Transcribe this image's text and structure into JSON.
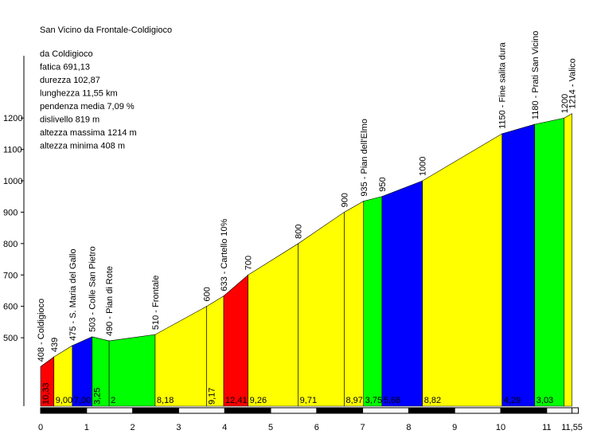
{
  "chart_data": {
    "type": "profile",
    "title": "San Vicino da Frontale-Coldigioco",
    "info": [
      "da Coldigioco",
      "fatica 691,13",
      "durezza 102,87",
      "lunghezza 11,55 km",
      "pendenza media 7,09 %",
      "dislivello 819 m",
      "altezza massima 1214 m",
      "altezza minima 408 m"
    ],
    "x": [
      0,
      0.29,
      0.69,
      1.12,
      1.49,
      2.49,
      3.61,
      3.98,
      4.51,
      5.6,
      6.6,
      7.02,
      7.42,
      8.3,
      10.03,
      10.74,
      11.38,
      11.55
    ],
    "values": [
      408,
      439,
      475,
      503,
      490,
      510,
      600,
      633,
      700,
      800,
      900,
      935,
      950,
      1000,
      1150,
      1180,
      1200,
      1214
    ],
    "point_labels": [
      "408 - Coldigioco",
      "439",
      "475 - S. Maria del Gallo",
      "503 - Colle San Pietro",
      "490 - Pian di Rote",
      "510 - Frontale",
      "600",
      "633 - Cartello 10%",
      "700",
      "800",
      "900",
      "935 - Pian dell'Elmo",
      "950",
      "1000",
      "1150 - Fine salita dura",
      "1180 - Prati San Vicino",
      "1200",
      "1214 - Valico"
    ],
    "gradient_labels": [
      "10,33",
      "9,00",
      "7,00",
      "3,25",
      "2",
      "8,18",
      "9,17",
      "12,41",
      "9,26",
      "9,71",
      "8,97",
      "3,75",
      "5,68",
      "8,82",
      "4,29",
      "3,03",
      null
    ],
    "segment_colors": [
      "#ff0000",
      "#ffff00",
      "#0000ff",
      "#00ff00",
      "#00ff00",
      "#ffff00",
      "#ffff00",
      "#ff0000",
      "#ffff00",
      "#ffff00",
      "#ffff00",
      "#00ff00",
      "#0000ff",
      "#ffff00",
      "#0000ff",
      "#00ff00",
      "#ffff00"
    ],
    "xlim": [
      0,
      11.55
    ],
    "xticks": [
      0,
      1,
      2,
      3,
      4,
      5,
      6,
      7,
      8,
      9,
      10,
      11,
      {
        "value": 11.55,
        "label": "11,55"
      }
    ],
    "ylim": [
      282,
      1576
    ],
    "yticks": [
      500,
      600,
      700,
      800,
      900,
      1000,
      1100,
      1200
    ]
  }
}
